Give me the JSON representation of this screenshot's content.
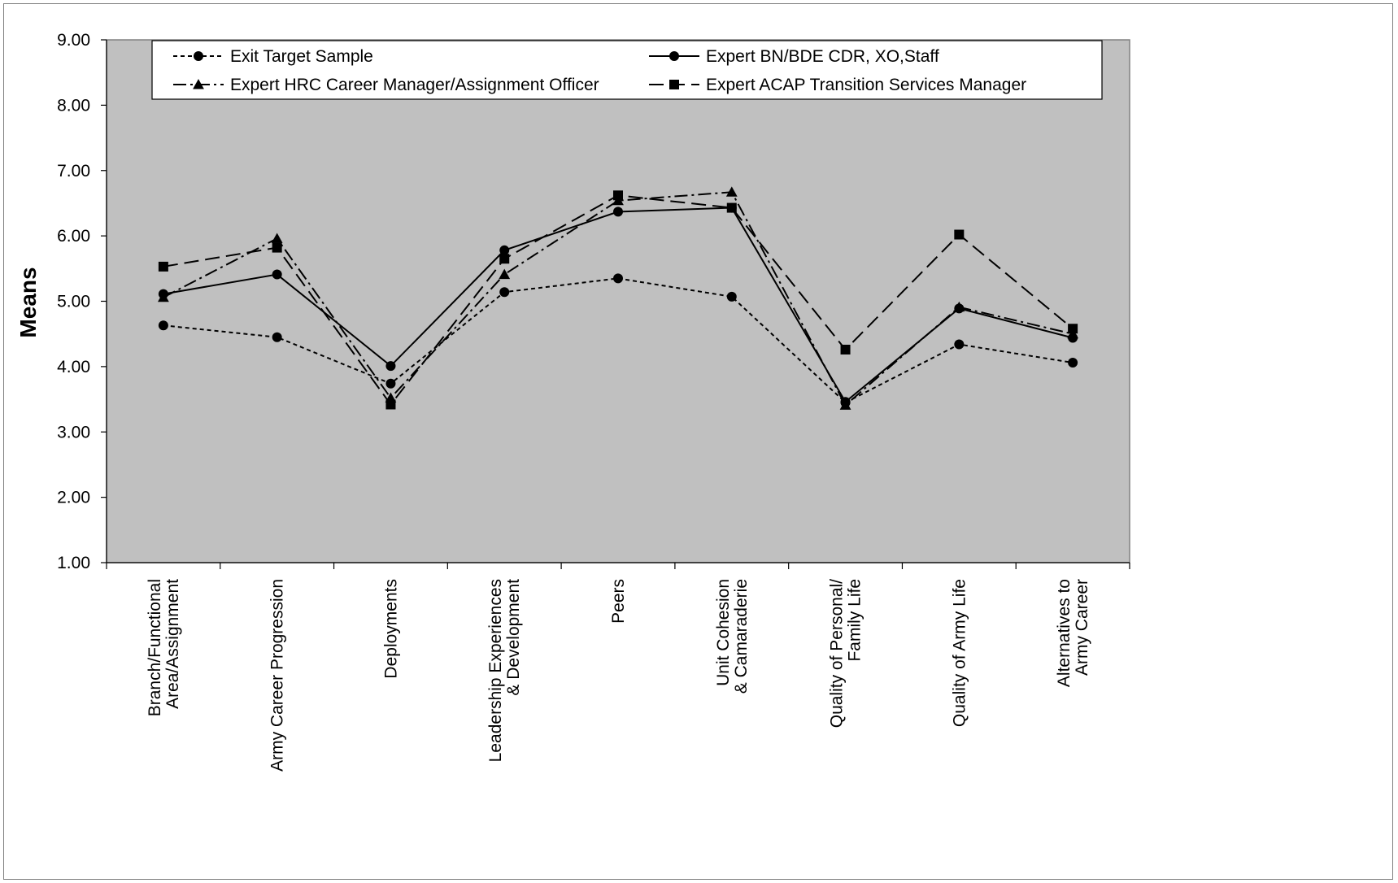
{
  "chart_data": {
    "type": "line",
    "title": "",
    "xlabel": "",
    "ylabel": "Means",
    "ylim": [
      1.0,
      9.0
    ],
    "yticks": [
      "1.00",
      "2.00",
      "3.00",
      "4.00",
      "5.00",
      "6.00",
      "7.00",
      "8.00",
      "9.00"
    ],
    "grid": false,
    "legend_position": "top",
    "plot_background": "#c0c0c0",
    "categories": [
      [
        "Branch/Functional",
        "Area/Assignment"
      ],
      [
        "Army Career Progression"
      ],
      [
        "Deployments"
      ],
      [
        "Leadership Experiences",
        "& Development"
      ],
      [
        "Peers"
      ],
      [
        "Unit Cohesion",
        "& Camaraderie"
      ],
      [
        "Quality of Personal/",
        "Family Life"
      ],
      [
        "Quality of Army Life"
      ],
      [
        "Alternatives to",
        "Army Career"
      ]
    ],
    "series": [
      {
        "name": "Exit Target Sample",
        "marker": "circle",
        "dash": "short-dash",
        "values": [
          4.63,
          4.45,
          3.74,
          5.14,
          5.35,
          5.07,
          3.45,
          4.34,
          4.06
        ]
      },
      {
        "name": "Expert BN/BDE CDR, XO,Staff",
        "marker": "circle",
        "dash": "solid",
        "values": [
          5.11,
          5.41,
          4.01,
          5.78,
          6.37,
          6.43,
          3.46,
          4.89,
          4.44
        ]
      },
      {
        "name": "Expert HRC Career Manager/Assignment Officer",
        "marker": "triangle",
        "dash": "dash-dot",
        "values": [
          5.06,
          5.96,
          3.52,
          5.41,
          6.54,
          6.67,
          3.41,
          4.91,
          4.5
        ]
      },
      {
        "name": "Expert ACAP Transition Services Manager",
        "marker": "square",
        "dash": "long-dash",
        "values": [
          5.53,
          5.82,
          3.42,
          5.65,
          6.62,
          6.43,
          4.26,
          6.02,
          4.58
        ]
      }
    ]
  }
}
